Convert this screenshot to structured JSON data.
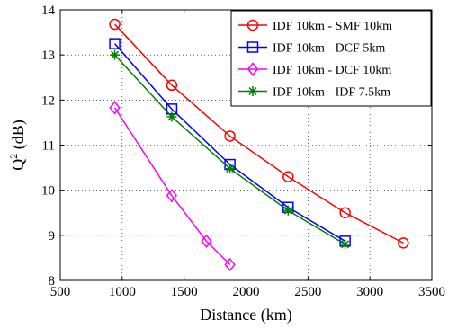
{
  "chart_data": {
    "type": "line",
    "xlabel": "Distance (km)",
    "ylabel_base": "Q",
    "ylabel_sup": "2",
    "ylabel_unit": " (dB)",
    "xlim": [
      500,
      3500
    ],
    "ylim": [
      8,
      14
    ],
    "xticks": [
      500,
      1000,
      1500,
      2000,
      2500,
      3000,
      3500
    ],
    "yticks": [
      8,
      9,
      10,
      11,
      12,
      13,
      14
    ],
    "grid": true,
    "legend_position": "top-right",
    "series": [
      {
        "name": "IDF 10km - SMF 10km",
        "color": "#ff0000",
        "marker": "circle",
        "x": [
          940,
          1400,
          1870,
          2340,
          2800,
          3270
        ],
        "y": [
          13.68,
          12.33,
          11.2,
          10.3,
          9.5,
          8.83
        ]
      },
      {
        "name": "IDF 10km - DCF 5km",
        "color": "#0000ff",
        "marker": "square",
        "x": [
          940,
          1400,
          1870,
          2340,
          2800
        ],
        "y": [
          13.25,
          11.8,
          10.57,
          9.62,
          8.87
        ]
      },
      {
        "name": "IDF 10km - DCF 10km",
        "color": "#ff00ff",
        "marker": "diamond",
        "x": [
          940,
          1400,
          1680,
          1870
        ],
        "y": [
          11.83,
          9.88,
          8.87,
          8.35
        ]
      },
      {
        "name": "IDF 10km - IDF 7.5km",
        "color": "#007f00",
        "marker": "star",
        "x": [
          940,
          1400,
          1870,
          2340,
          2800
        ],
        "y": [
          13.0,
          11.63,
          10.48,
          9.55,
          8.8
        ]
      }
    ]
  }
}
